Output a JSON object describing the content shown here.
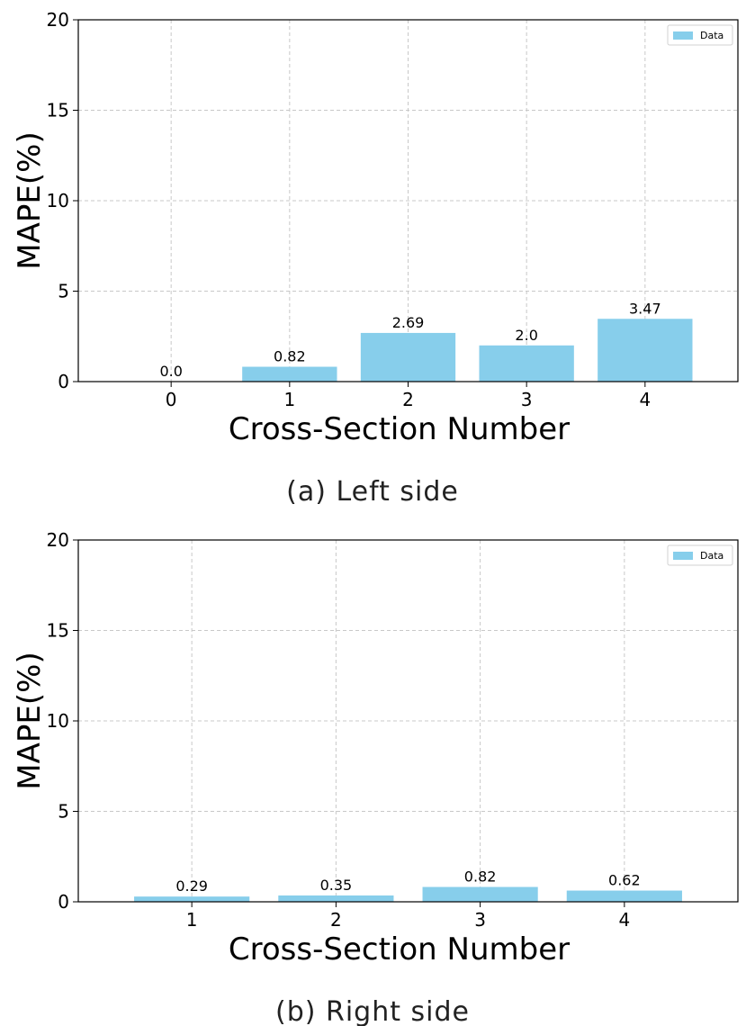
{
  "colors": {
    "bar": "#87ceeb"
  },
  "chart_data": [
    {
      "type": "bar",
      "categories": [
        "0",
        "1",
        "2",
        "3",
        "4"
      ],
      "series": [
        {
          "name": "Data",
          "values": [
            0.0,
            0.82,
            2.69,
            2.0,
            3.47
          ]
        }
      ],
      "data_labels": [
        "0.0",
        "0.82",
        "2.69",
        "2.0",
        "3.47"
      ],
      "yticks": [
        "0",
        "5",
        "10",
        "15",
        "20"
      ],
      "ylim": [
        0,
        20
      ],
      "xlabel": "Cross-Section Number",
      "ylabel": "MAPE(%)",
      "legend": "top-right",
      "grid": true,
      "caption": "(a) Left side"
    },
    {
      "type": "bar",
      "categories": [
        "1",
        "2",
        "3",
        "4"
      ],
      "series": [
        {
          "name": "Data",
          "values": [
            0.29,
            0.35,
            0.82,
            0.62
          ]
        }
      ],
      "data_labels": [
        "0.29",
        "0.35",
        "0.82",
        "0.62"
      ],
      "yticks": [
        "0",
        "5",
        "10",
        "15",
        "20"
      ],
      "ylim": [
        0,
        20
      ],
      "xlabel": "Cross-Section Number",
      "ylabel": "MAPE(%)",
      "legend": "top-right",
      "grid": true,
      "caption": "(b) Right side"
    }
  ]
}
